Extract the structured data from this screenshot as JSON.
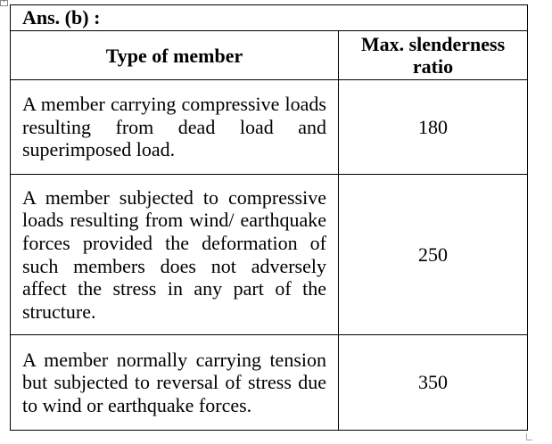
{
  "heading": "Ans. (b) :",
  "table": {
    "columns": [
      "Type of member",
      "Max. slenderness ratio"
    ],
    "rows": [
      {
        "member": "A member carrying compressive loads resulting from dead load and superimposed load.",
        "ratio": "180"
      },
      {
        "member": "A member subjected to compressive loads resulting from wind/ earthquake forces provided the deformation of such members does not adversely affect the stress in any part of the structure.",
        "ratio": "250"
      },
      {
        "member": "A member normally carrying tension but subjected to reversal of stress due to wind or earthquake forces.",
        "ratio": "350"
      }
    ]
  }
}
